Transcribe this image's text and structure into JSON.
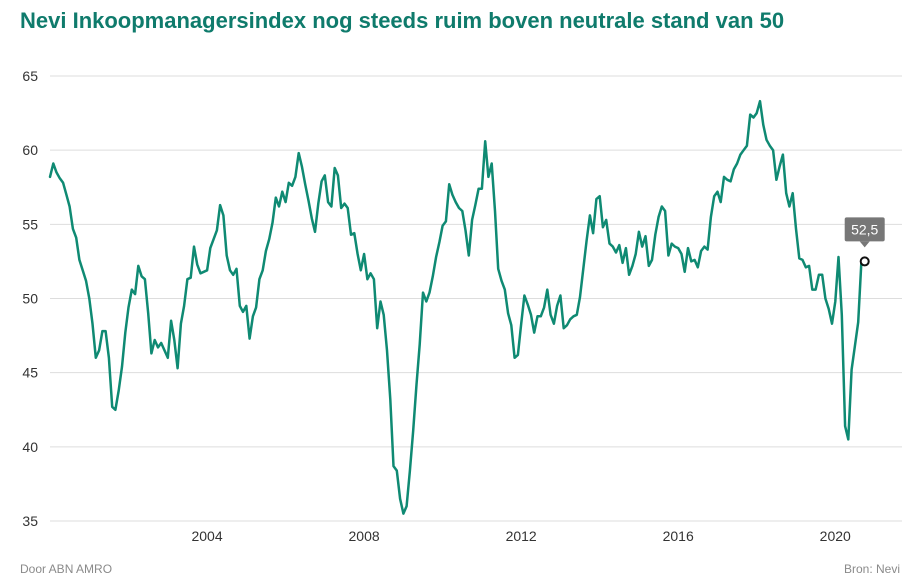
{
  "title": "Nevi Inkoopmanagersindex nog steeds ruim boven neutrale stand van 50",
  "footer": {
    "credit": "Door ABN AMRO",
    "source": "Bron:  Nevi"
  },
  "colors": {
    "title": "#0f7b6c",
    "line": "#0f8a73",
    "grid": "#dddddd",
    "tooltip_bg": "#777777",
    "axis_text": "#333333",
    "footer_text": "#8a8a8a"
  },
  "tooltip": {
    "label": "52,5"
  },
  "chart_data": {
    "type": "line",
    "title": "Nevi Inkoopmanagersindex nog steeds ruim boven neutrale stand van 50",
    "xlabel": "",
    "ylabel": "",
    "ylim": [
      35,
      65
    ],
    "xlim": [
      2000.0,
      2021.7
    ],
    "yticks": [
      35,
      40,
      45,
      50,
      55,
      60,
      65
    ],
    "xticks": [
      2004,
      2008,
      2012,
      2016,
      2020
    ],
    "grid": true,
    "series": [
      {
        "name": "Nevi Inkoopmanagersindex",
        "start_year": 2000.0,
        "step": 0.0833333,
        "values": [
          58.2,
          59.1,
          58.5,
          58.1,
          57.8,
          57.0,
          56.2,
          54.7,
          54.1,
          52.6,
          51.9,
          51.2,
          50.0,
          48.3,
          46.0,
          46.5,
          47.8,
          47.8,
          46.0,
          42.7,
          42.5,
          43.8,
          45.4,
          47.7,
          49.4,
          50.6,
          50.3,
          52.2,
          51.5,
          51.3,
          49.0,
          46.3,
          47.2,
          46.7,
          47.0,
          46.5,
          46.0,
          48.5,
          47.2,
          45.3,
          48.3,
          49.5,
          51.3,
          51.4,
          53.5,
          52.3,
          51.7,
          51.8,
          51.9,
          53.4,
          54.0,
          54.6,
          56.3,
          55.6,
          52.9,
          51.9,
          51.6,
          52.0,
          49.5,
          49.1,
          49.5,
          47.3,
          48.8,
          49.4,
          51.3,
          51.9,
          53.2,
          54.0,
          55.1,
          56.8,
          56.2,
          57.2,
          56.5,
          57.8,
          57.6,
          58.2,
          59.8,
          58.9,
          57.7,
          56.6,
          55.4,
          54.5,
          56.4,
          57.9,
          58.3,
          56.5,
          56.2,
          58.8,
          58.3,
          56.1,
          56.4,
          56.1,
          54.3,
          54.4,
          53.0,
          51.9,
          53.0,
          51.3,
          51.7,
          51.3,
          48.0,
          49.8,
          48.9,
          46.5,
          43.2,
          38.7,
          38.4,
          36.5,
          35.5,
          36.0,
          38.4,
          41.1,
          44.2,
          46.9,
          50.4,
          49.8,
          50.4,
          51.5,
          52.8,
          53.8,
          54.9,
          55.2,
          57.7,
          57.0,
          56.5,
          56.1,
          55.9,
          54.6,
          52.9,
          55.3,
          56.3,
          57.4,
          57.4,
          60.6,
          58.2,
          59.1,
          55.9,
          52.0,
          51.2,
          50.6,
          49.0,
          48.2,
          46.0,
          46.2,
          48.3,
          50.2,
          49.6,
          48.9,
          47.7,
          48.8,
          48.8,
          49.4,
          50.6,
          48.9,
          48.3,
          49.5,
          50.2,
          48.0,
          48.2,
          48.6,
          48.8,
          48.9,
          50.1,
          52.0,
          53.9,
          55.6,
          54.4,
          56.7,
          56.9,
          54.8,
          55.3,
          53.7,
          53.5,
          53.1,
          53.6,
          52.4,
          53.4,
          51.6,
          52.2,
          53.0,
          54.5,
          53.5,
          54.2,
          52.2,
          52.6,
          54.3,
          55.5,
          56.2,
          55.9,
          52.9,
          53.7,
          53.5,
          53.4,
          53.0,
          51.8,
          53.4,
          52.5,
          52.6,
          52.1,
          53.2,
          53.5,
          53.3,
          55.5,
          56.9,
          57.2,
          56.5,
          58.2,
          58.0,
          57.9,
          58.7,
          59.1,
          59.7,
          60.0,
          60.3,
          62.4,
          62.2,
          62.5,
          63.3,
          61.7,
          60.7,
          60.3,
          60.0,
          58.0,
          58.9,
          59.7,
          57.1,
          56.2,
          57.1,
          54.7,
          52.7,
          52.6,
          52.1,
          52.2,
          50.6,
          50.6,
          51.6,
          51.6,
          50.0,
          49.3,
          48.3,
          49.8,
          52.8,
          48.9,
          41.4,
          40.5,
          45.2,
          46.8,
          48.4,
          52.5
        ]
      }
    ],
    "highlight": {
      "year": 2020.75,
      "value": 52.5,
      "label": "52,5"
    }
  }
}
